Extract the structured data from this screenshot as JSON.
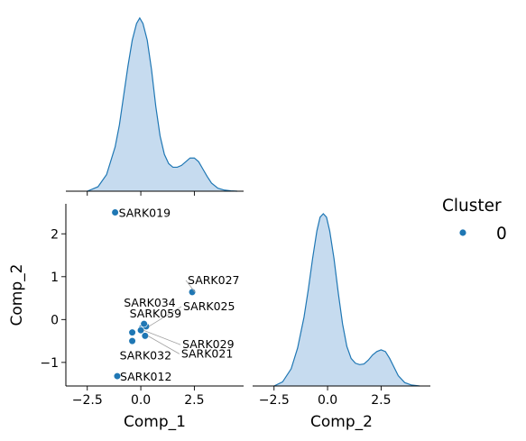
{
  "chart_data": {
    "type": "pairplot",
    "accent_color": "#1f77b4",
    "fill_color": "#c6dbef",
    "variables": [
      "Comp_1",
      "Comp_2"
    ],
    "legend": {
      "title": "Cluster",
      "entries": [
        "0"
      ],
      "placement": "right"
    },
    "panels": {
      "diag_comp1": {
        "type": "area",
        "xlim": [
          -3.5,
          4.8
        ],
        "kde": {
          "x": [
            -2.5,
            -2.0,
            -1.6,
            -1.2,
            -1.0,
            -0.8,
            -0.6,
            -0.4,
            -0.2,
            -0.05,
            0.1,
            0.3,
            0.5,
            0.7,
            0.9,
            1.1,
            1.3,
            1.5,
            1.7,
            1.9,
            2.1,
            2.3,
            2.5,
            2.7,
            2.9,
            3.1,
            3.3,
            3.6,
            3.9,
            4.2,
            4.5
          ],
          "density": [
            0.0,
            0.012,
            0.045,
            0.12,
            0.18,
            0.26,
            0.34,
            0.41,
            0.455,
            0.47,
            0.455,
            0.41,
            0.33,
            0.23,
            0.15,
            0.1,
            0.075,
            0.065,
            0.065,
            0.07,
            0.08,
            0.09,
            0.09,
            0.08,
            0.06,
            0.04,
            0.022,
            0.008,
            0.003,
            0.001,
            0.0
          ]
        }
      },
      "scatter": {
        "type": "scatter",
        "xlabel": "Comp_1",
        "ylabel": "Comp_2",
        "xlim": [
          -3.5,
          4.8
        ],
        "ylim": [
          -1.55,
          2.7
        ],
        "xticks": [
          -2.5,
          0.0,
          2.5
        ],
        "xticklabels": [
          "−2.5",
          "0.0",
          "2.5"
        ],
        "yticks": [
          -1,
          0,
          1,
          2
        ],
        "yticklabels": [
          "−1",
          "0",
          "1",
          "2"
        ],
        "points": [
          {
            "x": -1.2,
            "y": 2.5,
            "label": "SARK019"
          },
          {
            "x": 2.4,
            "y": 0.64,
            "label": "SARK027"
          },
          {
            "x": 0.05,
            "y": -0.2,
            "label": "SARK034"
          },
          {
            "x": 0.25,
            "y": -0.16,
            "label": "SARK025"
          },
          {
            "x": 0.15,
            "y": -0.1,
            "label": "SARK059"
          },
          {
            "x": 0.0,
            "y": -0.25,
            "label": "SARK029"
          },
          {
            "x": -0.4,
            "y": -0.3,
            "label": "SARK032"
          },
          {
            "x": 0.2,
            "y": -0.38,
            "label": "SARK021"
          },
          {
            "x": -0.4,
            "y": -0.5,
            "label": ""
          },
          {
            "x": -1.1,
            "y": -1.32,
            "label": "SARK012"
          }
        ]
      },
      "diag_comp2": {
        "type": "area",
        "xlabel": "Comp_2",
        "xlim": [
          -3.5,
          4.8
        ],
        "xticks": [
          -2.5,
          0.0,
          2.5
        ],
        "xticklabels": [
          "−2.5",
          "0.0",
          "2.5"
        ],
        "kde": {
          "x": [
            -2.5,
            -2.1,
            -1.7,
            -1.4,
            -1.1,
            -0.9,
            -0.7,
            -0.5,
            -0.35,
            -0.2,
            -0.05,
            0.1,
            0.3,
            0.5,
            0.7,
            0.9,
            1.1,
            1.3,
            1.5,
            1.7,
            1.9,
            2.1,
            2.3,
            2.5,
            2.7,
            2.9,
            3.1,
            3.3,
            3.6,
            3.9,
            4.3
          ],
          "density": [
            0.0,
            0.012,
            0.05,
            0.11,
            0.2,
            0.28,
            0.37,
            0.45,
            0.49,
            0.5,
            0.49,
            0.45,
            0.37,
            0.27,
            0.18,
            0.115,
            0.08,
            0.066,
            0.062,
            0.064,
            0.075,
            0.09,
            0.1,
            0.105,
            0.1,
            0.08,
            0.055,
            0.03,
            0.01,
            0.003,
            0.0
          ]
        }
      }
    }
  }
}
